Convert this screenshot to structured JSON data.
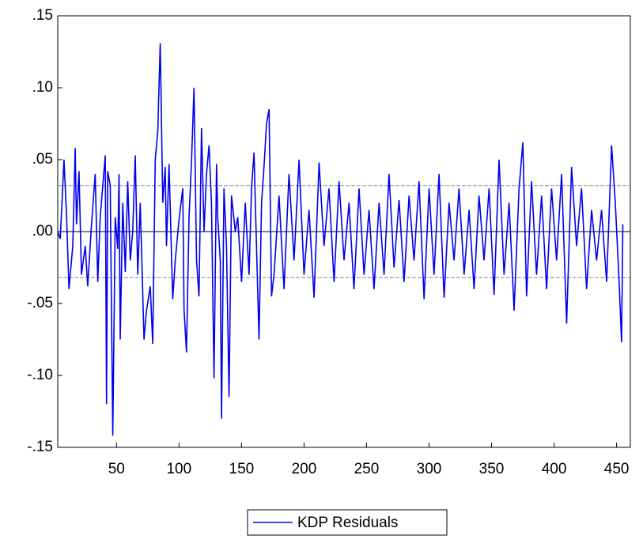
{
  "chart_data": {
    "type": "line",
    "x": [
      3,
      5,
      8,
      10,
      12,
      15,
      17,
      18,
      20,
      22,
      25,
      27,
      30,
      33,
      35,
      37,
      41,
      42,
      43,
      45,
      47,
      49,
      51,
      52,
      53,
      55,
      57,
      59,
      61,
      63,
      65,
      67,
      69,
      72,
      74,
      77,
      79,
      81,
      83,
      85,
      87,
      89,
      90,
      92,
      95,
      97,
      100,
      103,
      104,
      106,
      108,
      110,
      112,
      114,
      116,
      118,
      120,
      122,
      124,
      126,
      128,
      130,
      131,
      133,
      134,
      136,
      138,
      140,
      142,
      145,
      147,
      150,
      153,
      156,
      158,
      160,
      162,
      164,
      166,
      168,
      170,
      172,
      174,
      176,
      180,
      184,
      188,
      192,
      196,
      200,
      204,
      208,
      212,
      216,
      220,
      224,
      228,
      232,
      236,
      240,
      244,
      248,
      252,
      256,
      260,
      264,
      268,
      272,
      276,
      280,
      284,
      288,
      292,
      296,
      300,
      304,
      308,
      312,
      316,
      320,
      324,
      328,
      332,
      336,
      340,
      344,
      348,
      352,
      356,
      360,
      364,
      368,
      372,
      375,
      378,
      382,
      386,
      390,
      394,
      398,
      402,
      406,
      410,
      414,
      418,
      422,
      426,
      430,
      434,
      438,
      442,
      446,
      449,
      452,
      454,
      455
    ],
    "series": [
      {
        "name": "KDP Residuals",
        "color": "#0000ee",
        "values": [
          0.0,
          -0.005,
          0.05,
          0.012,
          -0.04,
          -0.01,
          0.058,
          0.005,
          0.042,
          -0.03,
          -0.01,
          -0.038,
          0.005,
          0.04,
          -0.035,
          0.01,
          0.053,
          -0.12,
          0.042,
          0.032,
          -0.142,
          0.01,
          -0.012,
          0.04,
          -0.075,
          0.02,
          -0.028,
          0.035,
          -0.02,
          0.0,
          0.053,
          -0.03,
          0.02,
          -0.075,
          -0.055,
          -0.038,
          -0.078,
          0.05,
          0.07,
          0.131,
          0.02,
          0.045,
          -0.01,
          0.047,
          -0.047,
          -0.02,
          0.008,
          0.03,
          -0.054,
          -0.084,
          0.01,
          0.048,
          0.1,
          -0.02,
          -0.045,
          0.072,
          0.0,
          0.04,
          0.06,
          0.02,
          -0.102,
          0.047,
          0.01,
          -0.02,
          -0.13,
          0.03,
          -0.01,
          -0.115,
          0.025,
          0.0,
          0.01,
          -0.035,
          0.02,
          -0.03,
          0.03,
          0.055,
          -0.01,
          -0.075,
          0.02,
          0.045,
          0.075,
          0.085,
          -0.045,
          -0.03,
          0.025,
          -0.04,
          0.04,
          -0.02,
          0.05,
          -0.03,
          0.015,
          -0.046,
          0.048,
          -0.01,
          0.03,
          -0.035,
          0.035,
          -0.02,
          0.02,
          -0.04,
          0.03,
          -0.03,
          0.015,
          -0.04,
          0.02,
          -0.03,
          0.04,
          -0.025,
          0.022,
          -0.035,
          0.025,
          -0.02,
          0.035,
          -0.047,
          0.03,
          -0.03,
          0.04,
          -0.046,
          0.02,
          -0.02,
          0.03,
          -0.03,
          0.015,
          -0.04,
          0.025,
          -0.02,
          0.03,
          -0.044,
          0.05,
          -0.03,
          0.02,
          -0.055,
          0.03,
          0.062,
          -0.045,
          0.035,
          -0.03,
          0.025,
          -0.04,
          0.03,
          -0.02,
          0.04,
          -0.064,
          0.045,
          -0.01,
          0.03,
          -0.04,
          0.015,
          -0.02,
          0.015,
          -0.035,
          0.06,
          0.02,
          -0.035,
          -0.077,
          0.005
        ]
      }
    ],
    "xlim": [
      3,
      461
    ],
    "xticks": [
      50,
      100,
      150,
      200,
      250,
      300,
      350,
      400,
      450
    ],
    "ylim": [
      -0.15,
      0.15
    ],
    "yticks": [
      {
        "value": -0.15,
        "label": "-.15"
      },
      {
        "value": -0.1,
        "label": "-.10"
      },
      {
        "value": -0.05,
        "label": "-.05"
      },
      {
        "value": 0,
        "label": ".00"
      },
      {
        "value": 0.05,
        "label": ".05"
      },
      {
        "value": 0.1,
        "label": ".10"
      },
      {
        "value": 0.15,
        "label": ".15"
      }
    ],
    "reference_lines": [
      0.032,
      0,
      -0.032
    ],
    "legend": "bottom"
  }
}
